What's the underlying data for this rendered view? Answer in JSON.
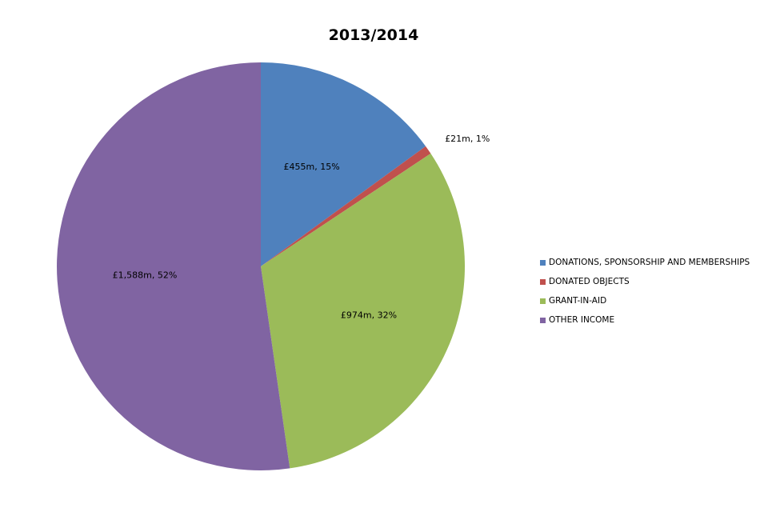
{
  "chart_data": {
    "type": "pie",
    "title": "2013/2014",
    "legend_position": "right",
    "slices": [
      {
        "name": "DONATIONS, SPONSORSHIP AND MEMBERSHIPS",
        "value": 455,
        "label": "£455m, 15%",
        "color": "#4F81BD"
      },
      {
        "name": "DONATED OBJECTS",
        "value": 21,
        "label": "£21m, 1%",
        "color": "#C0504D"
      },
      {
        "name": "GRANT-IN-AID",
        "value": 974,
        "label": "£974m, 32%",
        "color": "#9BBB59"
      },
      {
        "name": "OTHER INCOME",
        "value": 1588,
        "label": "£1,588m, 52%",
        "color": "#8064A2"
      }
    ]
  }
}
